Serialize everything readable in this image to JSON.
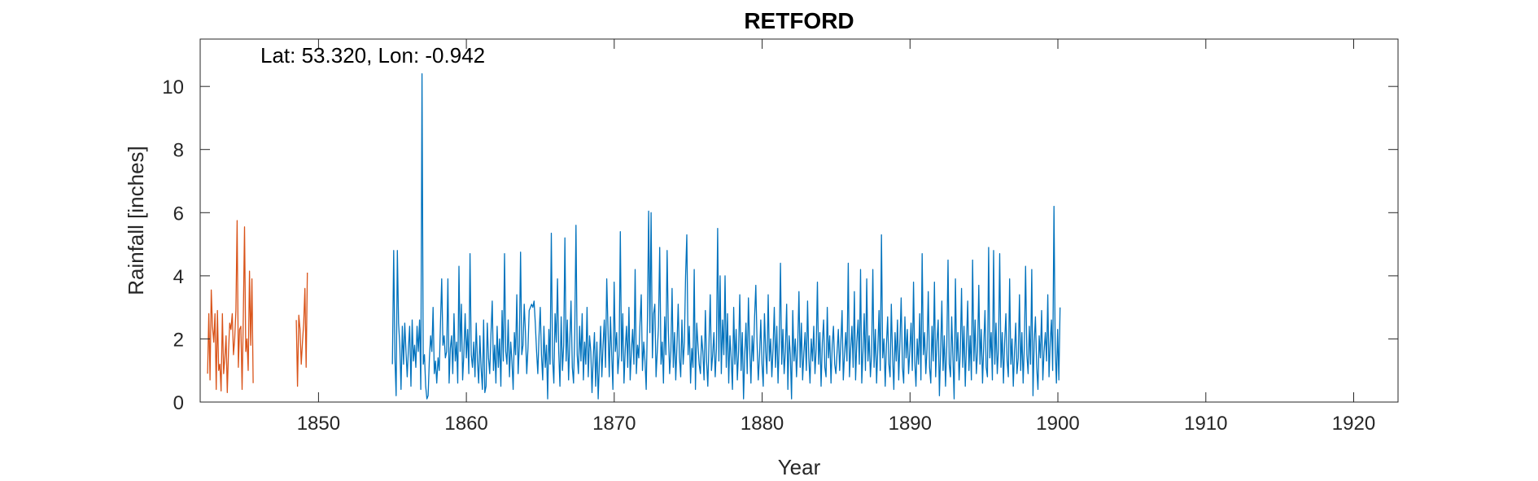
{
  "chart_data": {
    "type": "line",
    "title": "RETFORD",
    "annotation": "Lat: 53.320, Lon: -0.942",
    "xlabel": "Year",
    "ylabel": "Rainfall [inches]",
    "xlim": [
      1842,
      1923
    ],
    "ylim": [
      0,
      11.5
    ],
    "xticks": [
      1850,
      1860,
      1870,
      1880,
      1890,
      1900,
      1910,
      1920
    ],
    "yticks": [
      0,
      2,
      4,
      6,
      8,
      10
    ],
    "grid": false,
    "legend": "none",
    "series": [
      {
        "color": "#D95319",
        "segments": [
          {
            "start": 1842.5,
            "step": 0.0833,
            "values": [
              0.9,
              2.8,
              0.7,
              3.55,
              2.4,
              1.9,
              2.8,
              0.4,
              2.9,
              1.0,
              1.2,
              0.35,
              2.8,
              0.9,
              1.4,
              2.1,
              0.3,
              1.6,
              2.5,
              2.3,
              2.8,
              1.5,
              2.0,
              2.9,
              5.75,
              1.1,
              2.3,
              2.4,
              0.4,
              2.7,
              5.55,
              1.6,
              2.0,
              1.0,
              4.15,
              1.8,
              3.9,
              0.6
            ]
          },
          {
            "start": 1848.5,
            "step": 0.0833,
            "values": [
              2.6,
              0.5,
              2.75,
              2.3,
              1.2,
              1.9,
              2.5,
              3.6,
              1.1,
              4.1
            ]
          }
        ]
      },
      {
        "color": "#0072BD",
        "segments": [
          {
            "start": 1855.0,
            "step": 0.0833,
            "values": [
              1.2,
              4.8,
              1.4,
              0.2,
              4.8,
              2.5,
              1.8,
              0.4,
              2.4,
              1.2,
              2.5,
              1.6,
              0.8,
              1.7,
              2.4,
              0.5,
              2.6,
              1.3,
              1.8,
              1.1,
              2.4,
              1.6,
              2.6,
              0.4,
              10.4,
              1.2,
              1.5,
              0.5,
              0.1,
              0.2,
              1.4,
              2.1,
              1.6,
              3.0,
              0.9,
              1.3,
              0.6,
              1.4,
              1.0,
              2.5,
              3.9,
              1.8,
              2.1,
              1.4,
              1.6,
              3.9,
              0.6,
              1.7,
              2.1,
              0.9,
              2.8,
              1.3,
              1.9,
              0.6,
              4.3,
              1.6,
              3.1,
              0.7,
              1.5,
              2.8,
              1.4,
              2.3,
              0.9,
              4.7,
              1.5,
              1.1,
              1.9,
              0.8,
              2.5,
              1.3,
              0.6,
              2.1,
              1.1,
              0.4,
              2.6,
              0.3,
              0.5,
              2.5,
              1.4,
              0.9,
              2.2,
              3.2,
              1.0,
              1.8,
              0.6,
              2.4,
              1.1,
              2.0,
              0.5,
              2.9,
              1.3,
              4.7,
              1.6,
              1.2,
              2.6,
              0.8,
              1.9,
              1.3,
              0.4,
              2.2,
              1.5,
              3.4,
              0.9,
              1.8,
              4.75,
              1.5,
              1.8,
              3.1,
              2.2,
              0.9,
              1.7,
              2.9,
              3.0,
              3.1,
              3.0,
              3.2,
              2.5,
              1.6,
              0.9,
              2.1,
              3.0,
              1.5,
              0.7,
              2.4,
              1.1,
              1.8,
              0.1,
              2.3,
              1.2,
              5.35,
              1.4,
              0.6,
              2.8,
              1.9,
              3.9,
              1.6,
              0.5,
              2.7,
              1.0,
              1.8,
              5.2,
              1.3,
              2.6,
              0.7,
              1.9,
              3.2,
              1.1,
              0.6,
              2.2,
              5.6,
              1.5,
              0.9,
              2.4,
              1.3,
              2.8,
              0.7,
              1.9,
              1.2,
              3.0,
              0.8,
              2.1,
              1.6,
              0.3,
              1.4,
              2.2,
              0.5,
              1.9,
              0.1,
              1.3,
              2.4,
              0.8,
              1.8,
              2.6,
              1.1,
              3.9,
              2.3,
              0.8,
              2.7,
              1.5,
              0.4,
              3.8,
              1.6,
              2.2,
              0.9,
              1.5,
              5.4,
              1.3,
              2.8,
              0.6,
              1.7,
              2.4,
              1.1,
              3.0,
              0.7,
              1.6,
              2.3,
              1.2,
              4.2,
              0.9,
              1.8,
              1.4,
              2.5,
              3.4,
              1.0,
              1.9,
              1.3,
              0.4,
              2.6,
              6.05,
              2.2,
              6.0,
              1.4,
              2.8,
              3.1,
              0.8,
              1.6,
              2.4,
              4.9,
              1.2,
              1.9,
              0.6,
              2.7,
              1.5,
              4.8,
              2.3,
              0.9,
              1.6,
              3.6,
              1.1,
              2.2,
              0.7,
              1.8,
              3.1,
              1.4,
              0.8,
              2.6,
              1.2,
              1.9,
              4.0,
              5.3,
              1.5,
              2.4,
              0.6,
              1.7,
              1.1,
              4.2,
              0.4,
              2.5,
              1.8,
              1.2,
              0.9,
              2.1,
              1.6,
              0.7,
              2.9,
              1.3,
              0.5,
              1.9,
              3.4,
              1.0,
              1.5,
              2.2,
              0.8,
              1.7,
              5.5,
              1.3,
              4.0,
              0.9,
              2.6,
              1.5,
              4.0,
              1.1,
              2.8,
              0.6,
              2.1,
              1.4,
              0.4,
              3.0,
              1.2,
              2.3,
              0.7,
              1.6,
              3.4,
              1.0,
              2.2,
              0.1,
              1.5,
              2.5,
              0.9,
              3.3,
              1.8,
              0.6,
              2.1,
              1.3,
              2.7,
              3.7,
              1.9,
              0.7,
              1.5,
              2.6,
              1.2,
              0.5,
              2.8,
              1.6,
              0.9,
              3.4,
              1.3,
              2.0,
              0.8,
              1.7,
              3.0,
              1.1,
              2.4,
              0.6,
              1.9,
              4.4,
              1.2,
              2.3,
              0.9,
              1.6,
              3.1,
              0.4,
              2.1,
              1.5,
              0.1,
              2.9,
              1.3,
              2.0,
              0.8,
              1.8,
              3.5,
              1.1,
              2.5,
              0.7,
              1.6,
              2.2,
              1.0,
              3.2,
              1.4,
              0.6,
              2.0,
              1.3,
              2.4,
              0.9,
              1.7,
              3.8,
              1.2,
              2.2,
              0.5,
              1.9,
              2.6,
              1.1,
              0.8,
              3.0,
              1.4,
              2.1,
              0.6,
              1.8,
              2.4,
              1.2,
              0.9,
              1.6,
              2.3,
              1.0,
              1.9,
              2.9,
              0.7,
              1.5,
              2.2,
              1.3,
              4.4,
              0.8,
              1.7,
              2.4,
              1.1,
              3.5,
              0.7,
              1.9,
              2.6,
              1.2,
              4.2,
              0.6,
              1.6,
              2.8,
              1.0,
              3.9,
              1.3,
              2.1,
              0.8,
              1.5,
              4.2,
              1.1,
              2.3,
              0.6,
              1.7,
              2.9,
              1.0,
              5.3,
              1.4,
              2.0,
              0.5,
              1.8,
              2.7,
              1.2,
              0.8,
              3.1,
              1.5,
              0.4,
              2.2,
              1.3,
              2.6,
              0.7,
              1.9,
              3.3,
              1.1,
              0.6,
              2.7,
              1.4,
              2.3,
              0.9,
              1.6,
              2.5,
              1.0,
              3.8,
              1.3,
              0.5,
              2.0,
              1.2,
              2.8,
              0.7,
              4.7,
              1.5,
              2.2,
              0.9,
              1.7,
              3.5,
              1.1,
              0.6,
              2.4,
              1.3,
              3.8,
              0.8,
              1.9,
              2.6,
              0.2,
              1.6,
              3.2,
              1.0,
              2.1,
              0.5,
              1.8,
              4.5,
              1.2,
              0.8,
              2.7,
              1.4,
              0.1,
              3.9,
              1.3,
              2.2,
              0.7,
              1.6,
              3.6,
              1.1,
              2.4,
              0.5,
              1.9,
              3.2,
              1.0,
              2.1,
              0.7,
              4.5,
              1.3,
              2.6,
              0.9,
              1.6,
              3.7,
              1.2,
              2.3,
              0.6,
              1.8,
              2.9,
              1.1,
              0.8,
              4.9,
              1.4,
              2.2,
              0.7,
              4.8,
              1.2,
              2.5,
              0.9,
              1.7,
              4.7,
              1.1,
              2.2,
              0.6,
              1.9,
              2.8,
              1.3,
              0.8,
              3.9,
              1.2,
              2.0,
              0.5,
              1.6,
              2.5,
              0.9,
              1.4,
              3.4,
              1.0,
              2.2,
              0.6,
              1.8,
              4.3,
              1.5,
              0.9,
              2.4,
              1.2,
              4.2,
              0.2,
              1.9,
              2.7,
              1.1,
              0.4,
              2.1,
              1.4,
              2.9,
              0.7,
              1.6,
              2.2,
              1.3,
              3.4,
              0.8,
              1.9,
              2.6,
              1.0,
              6.2,
              1.7,
              0.6,
              2.3,
              0.7,
              3.0
            ]
          }
        ]
      }
    ]
  }
}
